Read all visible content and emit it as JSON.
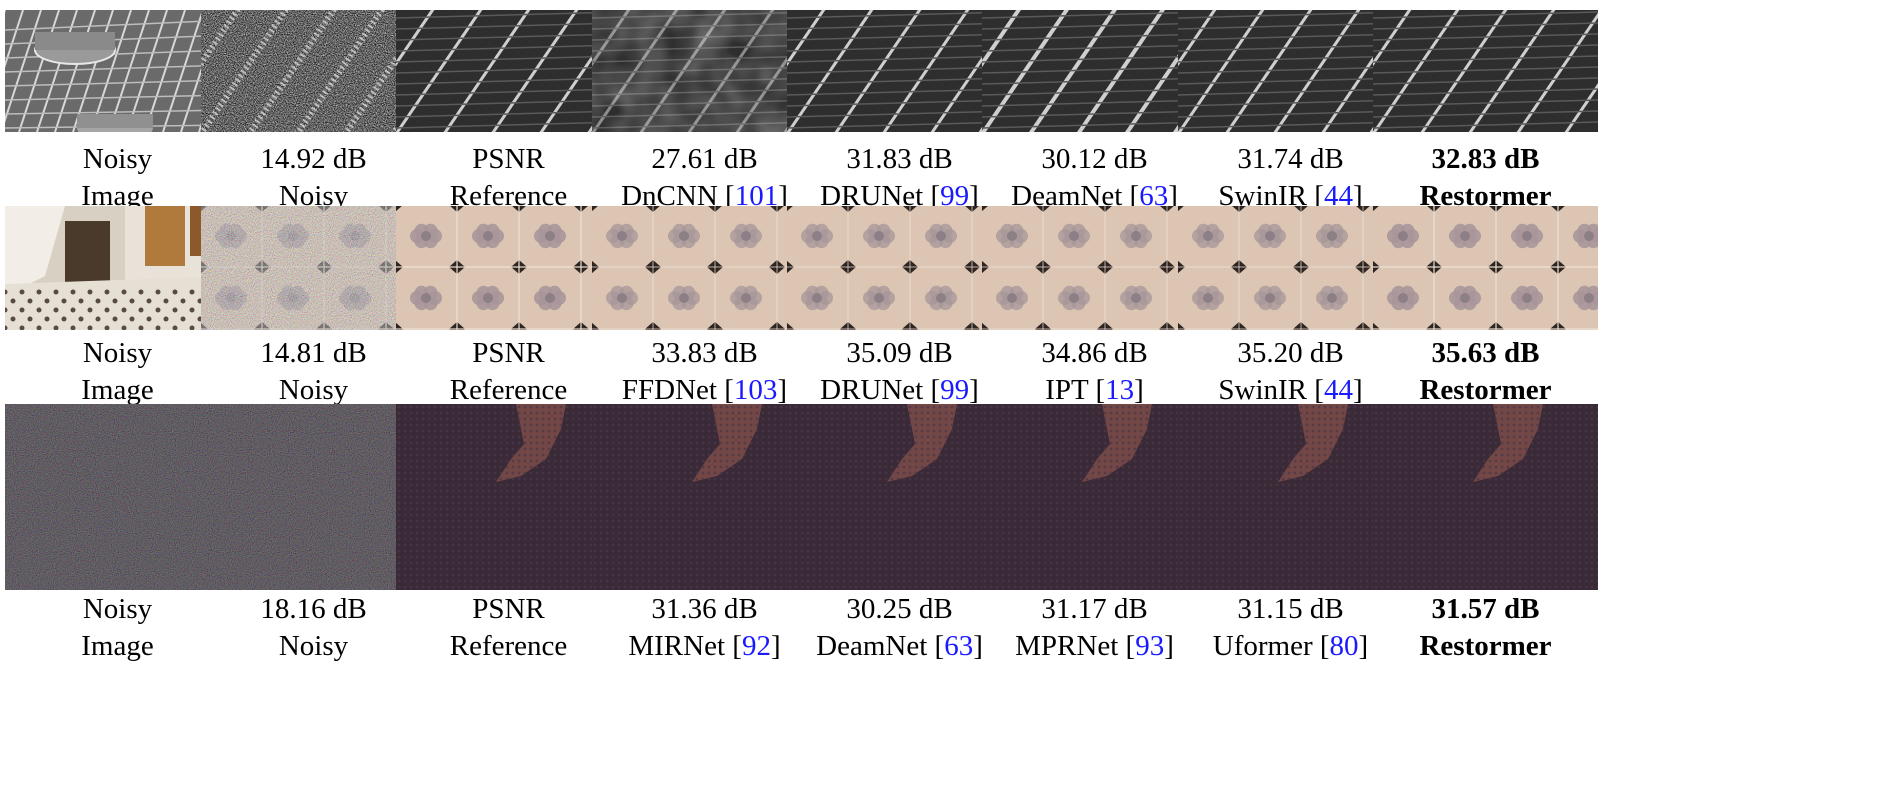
{
  "rows": [
    {
      "kind": "grid",
      "cells": [
        {
          "score": "Noisy",
          "method": "Image",
          "cite": "",
          "best": false,
          "view": "full"
        },
        {
          "score": "14.92 dB",
          "method": "Noisy",
          "cite": "",
          "best": false,
          "view": "noisy"
        },
        {
          "score": "PSNR",
          "method": "Reference",
          "cite": "",
          "best": false,
          "view": "clean"
        },
        {
          "score": "27.61 dB",
          "method": "DnCNN",
          "cite": "101",
          "best": false,
          "view": "smear"
        },
        {
          "score": "31.83 dB",
          "method": "DRUNet",
          "cite": "99",
          "best": false,
          "view": "clean"
        },
        {
          "score": "30.12 dB",
          "method": "DeamNet",
          "cite": "63",
          "best": false,
          "view": "soft"
        },
        {
          "score": "31.74 dB",
          "method": "SwinIR",
          "cite": "44",
          "best": false,
          "view": "clean"
        },
        {
          "score": "32.83 dB",
          "method": "Restormer",
          "cite": "",
          "best": true,
          "view": "clean"
        }
      ]
    },
    {
      "kind": "tile",
      "cells": [
        {
          "score": "Noisy",
          "method": "Image",
          "cite": "",
          "best": false,
          "view": "full"
        },
        {
          "score": "14.81 dB",
          "method": "Noisy",
          "cite": "",
          "best": false,
          "view": "noisy"
        },
        {
          "score": "PSNR",
          "method": "Reference",
          "cite": "",
          "best": false,
          "view": "clean"
        },
        {
          "score": "33.83 dB",
          "method": "FFDNet",
          "cite": "103",
          "best": false,
          "view": "soft"
        },
        {
          "score": "35.09 dB",
          "method": "DRUNet",
          "cite": "99",
          "best": false,
          "view": "soft"
        },
        {
          "score": "34.86 dB",
          "method": "IPT",
          "cite": "13",
          "best": false,
          "view": "soft"
        },
        {
          "score": "35.20 dB",
          "method": "SwinIR",
          "cite": "44",
          "best": false,
          "view": "soft"
        },
        {
          "score": "35.63 dB",
          "method": "Restormer",
          "cite": "",
          "best": true,
          "view": "clean"
        }
      ]
    },
    {
      "kind": "fabric",
      "cells": [
        {
          "score": "Noisy",
          "method": "Image",
          "cite": "",
          "best": false,
          "view": "noisy"
        },
        {
          "score": "18.16 dB",
          "method": "Noisy",
          "cite": "",
          "best": false,
          "view": "noisy"
        },
        {
          "score": "PSNR",
          "method": "Reference",
          "cite": "",
          "best": false,
          "view": "clean"
        },
        {
          "score": "31.36 dB",
          "method": "MIRNet",
          "cite": "92",
          "best": false,
          "view": "clean"
        },
        {
          "score": "30.25 dB",
          "method": "DeamNet",
          "cite": "63",
          "best": false,
          "view": "clean"
        },
        {
          "score": "31.17 dB",
          "method": "MPRNet",
          "cite": "93",
          "best": false,
          "view": "clean"
        },
        {
          "score": "31.15 dB",
          "method": "Uformer",
          "cite": "80",
          "best": false,
          "view": "clean"
        },
        {
          "score": "31.57 dB",
          "method": "Restormer",
          "cite": "",
          "best": true,
          "view": "clean"
        }
      ]
    }
  ],
  "colors": {
    "link": "#1a1aff"
  }
}
